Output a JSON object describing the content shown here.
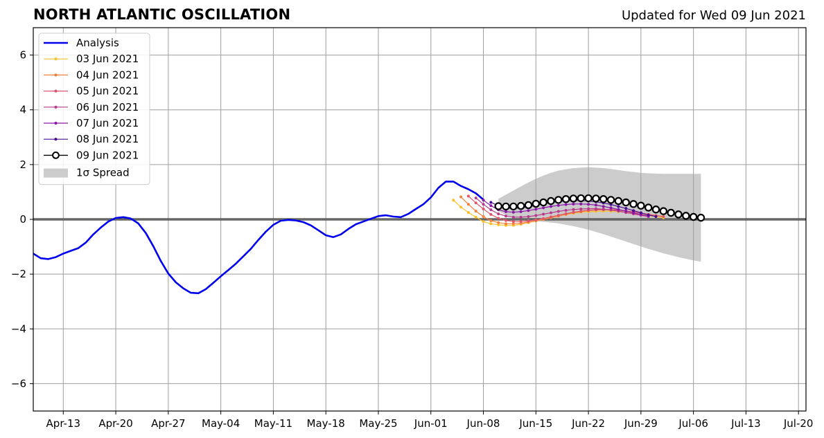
{
  "title": "NORTH ATLANTIC OSCILLATION",
  "updated": "Updated for Wed 09 Jun 2021",
  "chart_data": {
    "type": "line",
    "ylim": [
      -7,
      7
    ],
    "xlim": [
      "2021-04-09",
      "2021-07-21"
    ],
    "yticks": [
      -6,
      -4,
      -2,
      0,
      2,
      4,
      6
    ],
    "ytick_labels": [
      "−6",
      "−4",
      "−2",
      "0",
      "2",
      "4",
      "6"
    ],
    "xticks": [
      {
        "date": "2021-04-13",
        "label": "Apr-13"
      },
      {
        "date": "2021-04-20",
        "label": "Apr-20"
      },
      {
        "date": "2021-04-27",
        "label": "Apr-27"
      },
      {
        "date": "2021-05-04",
        "label": "May-04"
      },
      {
        "date": "2021-05-11",
        "label": "May-11"
      },
      {
        "date": "2021-05-18",
        "label": "May-18"
      },
      {
        "date": "2021-05-25",
        "label": "May-25"
      },
      {
        "date": "2021-06-01",
        "label": "Jun-01"
      },
      {
        "date": "2021-06-08",
        "label": "Jun-08"
      },
      {
        "date": "2021-06-15",
        "label": "Jun-15"
      },
      {
        "date": "2021-06-22",
        "label": "Jun-22"
      },
      {
        "date": "2021-06-29",
        "label": "Jun-29"
      },
      {
        "date": "2021-07-06",
        "label": "Jul-06"
      },
      {
        "date": "2021-07-13",
        "label": "Jul-13"
      },
      {
        "date": "2021-07-20",
        "label": "Jul-20"
      }
    ],
    "grid": true,
    "zero_line": true,
    "legend_position": "top-left",
    "analysis": {
      "name": "Analysis",
      "color": "#0000ee",
      "start": "2021-04-09",
      "values": [
        -1.25,
        -1.42,
        -1.45,
        -1.38,
        -1.25,
        -1.15,
        -1.05,
        -0.85,
        -0.55,
        -0.3,
        -0.08,
        0.05,
        0.08,
        0.03,
        -0.15,
        -0.5,
        -0.98,
        -1.52,
        -1.98,
        -2.3,
        -2.52,
        -2.68,
        -2.7,
        -2.55,
        -2.32,
        -2.08,
        -1.85,
        -1.62,
        -1.35,
        -1.08,
        -0.75,
        -0.45,
        -0.2,
        -0.05,
        -0.02,
        -0.04,
        -0.1,
        -0.22,
        -0.4,
        -0.58,
        -0.65,
        -0.55,
        -0.35,
        -0.18,
        -0.08,
        0.02,
        0.12,
        0.15,
        0.1,
        0.08,
        0.2,
        0.38,
        0.55,
        0.8,
        1.15,
        1.38,
        1.38,
        1.22,
        1.1,
        0.95,
        0.72
      ]
    },
    "forecasts": [
      {
        "name": "03 Jun 2021",
        "color": "#fbc02d",
        "start": "2021-06-04",
        "values": [
          0.7,
          0.45,
          0.25,
          0.08,
          -0.08,
          -0.16,
          -0.2,
          -0.22,
          -0.22,
          -0.18,
          -0.12,
          -0.06,
          0.0,
          0.06,
          0.12,
          0.18,
          0.22,
          0.26,
          0.28,
          0.29,
          0.3,
          0.3,
          0.28,
          0.26,
          0.22,
          0.18,
          0.14,
          0.1,
          0.06
        ]
      },
      {
        "name": "04 Jun 2021",
        "color": "#f4813a",
        "start": "2021-06-05",
        "values": [
          0.82,
          0.55,
          0.3,
          0.1,
          -0.05,
          -0.12,
          -0.16,
          -0.16,
          -0.14,
          -0.1,
          -0.05,
          0.0,
          0.06,
          0.12,
          0.18,
          0.24,
          0.28,
          0.32,
          0.34,
          0.35,
          0.35,
          0.33,
          0.3,
          0.27,
          0.23,
          0.18,
          0.14,
          0.1
        ]
      },
      {
        "name": "05 Jun 2021",
        "color": "#e0556b",
        "start": "2021-06-06",
        "values": [
          0.85,
          0.6,
          0.38,
          0.18,
          0.04,
          -0.04,
          -0.08,
          -0.08,
          -0.06,
          -0.02,
          0.03,
          0.09,
          0.15,
          0.21,
          0.26,
          0.3,
          0.33,
          0.35,
          0.36,
          0.36,
          0.34,
          0.31,
          0.27,
          0.23,
          0.18,
          0.14,
          0.1
        ]
      },
      {
        "name": "06 Jun 2021",
        "color": "#b83a8c",
        "start": "2021-06-07",
        "values": [
          0.78,
          0.55,
          0.35,
          0.2,
          0.12,
          0.08,
          0.08,
          0.1,
          0.14,
          0.19,
          0.24,
          0.29,
          0.33,
          0.36,
          0.38,
          0.39,
          0.39,
          0.37,
          0.34,
          0.3,
          0.25,
          0.2,
          0.15,
          0.1
        ]
      },
      {
        "name": "07 Jun 2021",
        "color": "#8a17a8",
        "start": "2021-06-08",
        "values": [
          0.7,
          0.5,
          0.35,
          0.28,
          0.26,
          0.28,
          0.32,
          0.37,
          0.42,
          0.47,
          0.51,
          0.54,
          0.56,
          0.56,
          0.55,
          0.52,
          0.47,
          0.42,
          0.36,
          0.3,
          0.24,
          0.18,
          0.12
        ]
      },
      {
        "name": "08 Jun 2021",
        "color": "#4a0b90",
        "start": "2021-06-09",
        "values": [
          0.62,
          0.5,
          0.42,
          0.4,
          0.42,
          0.46,
          0.51,
          0.56,
          0.61,
          0.65,
          0.68,
          0.69,
          0.69,
          0.67,
          0.64,
          0.6,
          0.54,
          0.47,
          0.4,
          0.32,
          0.24,
          0.16,
          0.1
        ]
      },
      {
        "name": "09 Jun 2021",
        "color": "#000000",
        "start": "2021-06-10",
        "values": [
          0.48,
          0.47,
          0.47,
          0.49,
          0.52,
          0.57,
          0.62,
          0.67,
          0.71,
          0.74,
          0.76,
          0.77,
          0.77,
          0.76,
          0.74,
          0.71,
          0.67,
          0.62,
          0.56,
          0.5,
          0.43,
          0.36,
          0.3,
          0.24,
          0.18,
          0.13,
          0.09,
          0.06
        ]
      }
    ],
    "spread": {
      "name": "1σ Spread",
      "color": "#cccccc",
      "start": "2021-06-10",
      "upper": [
        0.75,
        0.9,
        1.05,
        1.2,
        1.35,
        1.48,
        1.6,
        1.7,
        1.78,
        1.83,
        1.87,
        1.89,
        1.9,
        1.89,
        1.87,
        1.84,
        1.8,
        1.76,
        1.73,
        1.7,
        1.68,
        1.67,
        1.66,
        1.66,
        1.66,
        1.66,
        1.66,
        1.66
      ],
      "lower": [
        0.3,
        0.15,
        0.05,
        -0.02,
        -0.05,
        -0.07,
        -0.09,
        -0.12,
        -0.15,
        -0.2,
        -0.25,
        -0.31,
        -0.38,
        -0.46,
        -0.54,
        -0.63,
        -0.72,
        -0.81,
        -0.9,
        -0.99,
        -1.08,
        -1.16,
        -1.24,
        -1.31,
        -1.38,
        -1.44,
        -1.5,
        -1.55
      ]
    }
  }
}
